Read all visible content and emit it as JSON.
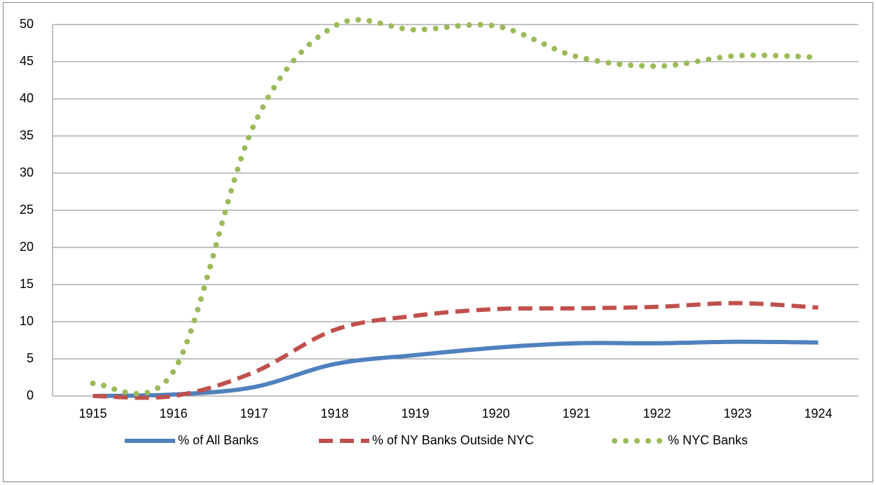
{
  "chart_data": {
    "type": "line",
    "categories": [
      "1915",
      "1916",
      "1917",
      "1918",
      "1919",
      "1920",
      "1921",
      "1922",
      "1923",
      "1924"
    ],
    "series": [
      {
        "name": "% of All Banks",
        "color": "#4f81bd",
        "style": "solid",
        "values": [
          0,
          0.2,
          1.2,
          4.3,
          5.5,
          6.5,
          7.1,
          7.1,
          7.3,
          7.2
        ]
      },
      {
        "name": "% of NY Banks Outside NYC",
        "color": "#c0504d",
        "style": "dashed",
        "values": [
          0,
          0,
          3.2,
          8.9,
          10.8,
          11.7,
          11.8,
          12.0,
          12.5,
          11.9
        ]
      },
      {
        "name": "% NYC Banks",
        "color": "#9bbb59",
        "style": "dotted",
        "values": [
          1.7,
          3.3,
          36.5,
          49.8,
          49.3,
          49.8,
          45.7,
          44.4,
          45.8,
          45.6
        ]
      }
    ],
    "ylim": [
      0,
      50
    ],
    "yticks": [
      0,
      5,
      10,
      15,
      20,
      25,
      30,
      35,
      40,
      45,
      50
    ],
    "grid": true,
    "smooth": true,
    "legend": "bottom"
  }
}
